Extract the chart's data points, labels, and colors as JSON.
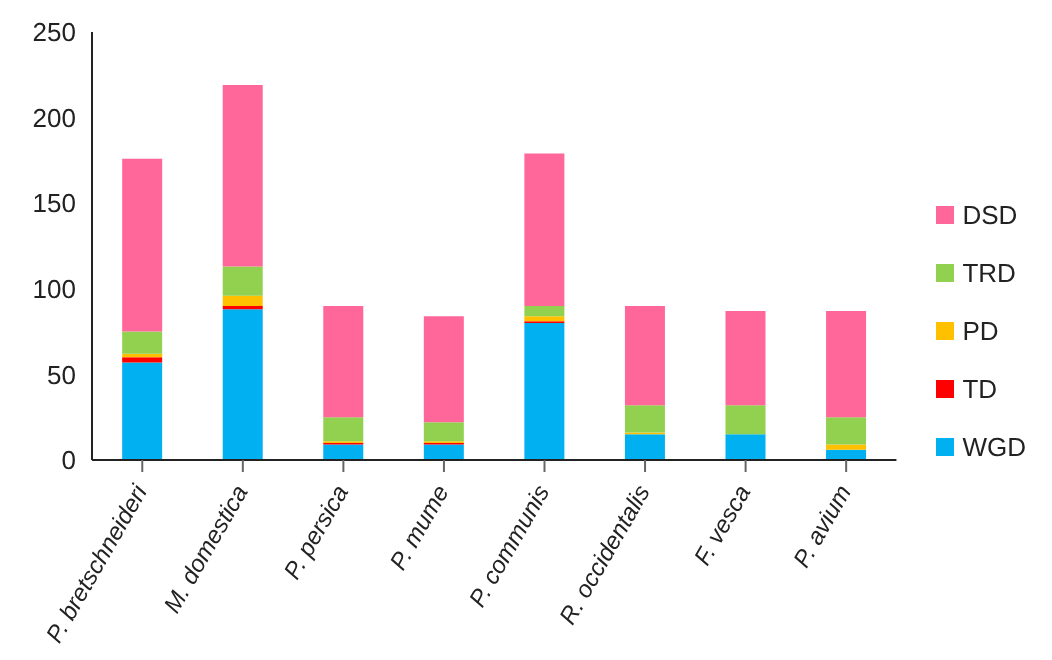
{
  "chart_data": {
    "type": "bar",
    "stacked": true,
    "categories": [
      "P. bretschneideri",
      "M. domestica",
      "P. persica",
      "P. mume",
      "P. communis",
      "R. occidentalis",
      "F. vesca",
      "P. avium"
    ],
    "series": [
      {
        "name": "WGD",
        "color": "#00b0f0",
        "values": [
          57,
          88,
          9,
          9,
          80,
          15,
          15,
          6
        ]
      },
      {
        "name": "TD",
        "color": "#ff0000",
        "values": [
          3,
          2,
          1,
          1,
          1,
          0,
          0,
          0
        ]
      },
      {
        "name": "PD",
        "color": "#ffc000",
        "values": [
          2,
          6,
          1,
          1,
          3,
          1,
          0,
          3
        ]
      },
      {
        "name": "TRD",
        "color": "#92d050",
        "values": [
          13,
          17,
          14,
          11,
          6,
          16,
          17,
          16
        ]
      },
      {
        "name": "DSD",
        "color": "#ff6699",
        "values": [
          101,
          106,
          65,
          62,
          89,
          58,
          55,
          62
        ]
      }
    ],
    "ylim": [
      0,
      250
    ],
    "yticks": [
      0,
      50,
      100,
      150,
      200,
      250
    ],
    "grid": false,
    "legend": "right"
  }
}
